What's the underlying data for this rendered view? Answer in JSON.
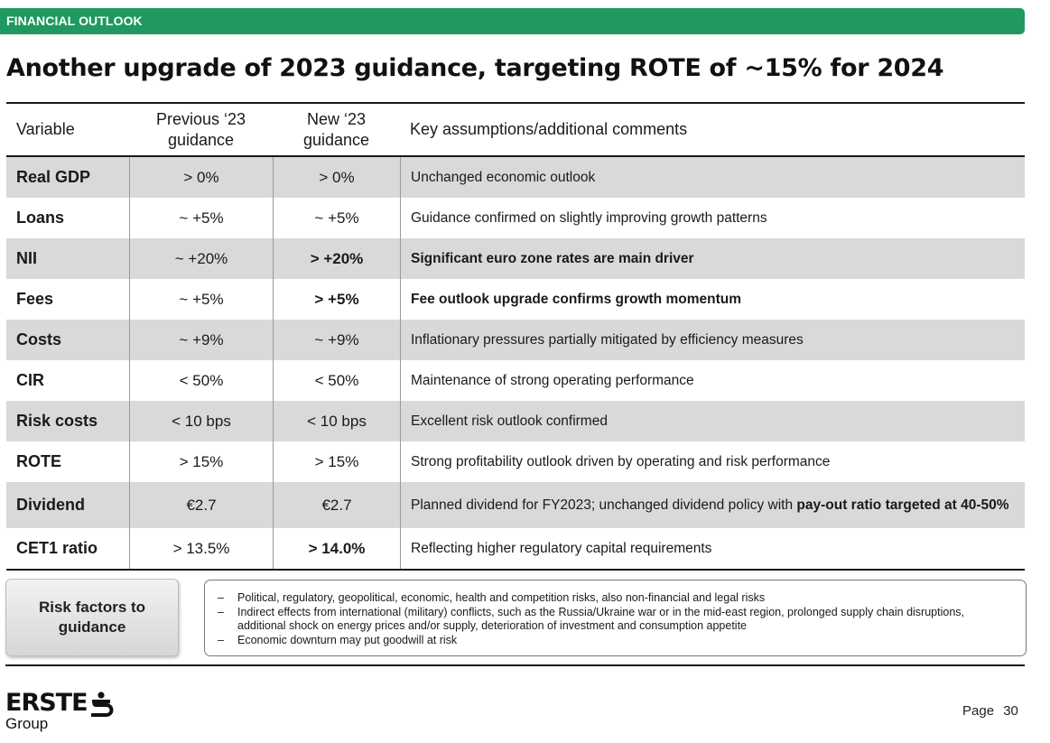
{
  "banner": "FINANCIAL OUTLOOK",
  "title": "Another upgrade of 2023 guidance, targeting ROTE of ~15% for 2024",
  "table": {
    "headers": {
      "variable": "Variable",
      "previous": "Previous ‘23 guidance",
      "new": "New ‘23 guidance",
      "comments": "Key assumptions/additional comments"
    },
    "rows": [
      {
        "variable": "Real GDP",
        "previous": "> 0%",
        "new": "> 0%",
        "comment": "Unchanged economic outlook"
      },
      {
        "variable": "Loans",
        "previous": "~ +5%",
        "new": "~ +5%",
        "comment": "Guidance confirmed on slightly improving growth patterns"
      },
      {
        "variable": "NII",
        "previous": "~ +20%",
        "new": "> +20%",
        "comment": "Significant euro zone rates are main driver"
      },
      {
        "variable": "Fees",
        "previous": "~ +5%",
        "new": "> +5%",
        "comment": "Fee outlook upgrade confirms growth momentum"
      },
      {
        "variable": "Costs",
        "previous": "~ +9%",
        "new": "~ +9%",
        "comment": "Inflationary pressures partially mitigated by efficiency measures"
      },
      {
        "variable": "CIR",
        "previous": "< 50%",
        "new": "< 50%",
        "comment": "Maintenance of strong operating performance"
      },
      {
        "variable": "Risk costs",
        "previous": "< 10 bps",
        "new": "< 10 bps",
        "comment": "Excellent risk outlook confirmed"
      },
      {
        "variable": "ROTE",
        "previous": "> 15%",
        "new": "> 15%",
        "comment": "Strong profitability outlook driven by operating and risk performance"
      },
      {
        "variable": "Dividend",
        "previous": "€2.7",
        "new": "€2.7",
        "comment": "Planned dividend for FY2023; unchanged dividend policy with ",
        "comment_bold": "pay-out ratio targeted at 40-50%"
      },
      {
        "variable": "CET1 ratio",
        "previous": "> 13.5%",
        "new": "> 14.0%",
        "comment": "Reflecting higher regulatory capital requirements"
      }
    ]
  },
  "risk": {
    "button_label": "Risk factors to guidance",
    "items": [
      "Political, regulatory, geopolitical, economic, health and competition risks, also non-financial and legal risks",
      "Indirect effects from international (military) conflicts, such as the Russia/Ukraine war or in the mid-east region, prolonged supply chain disruptions, additional shock on energy prices and/or supply, deterioration of investment and consumption appetite",
      "Economic downturn may put goodwill at risk"
    ]
  },
  "footer": {
    "logo_word": "ERSTE",
    "logo_sub": "Group",
    "page_label": "Page 30"
  }
}
